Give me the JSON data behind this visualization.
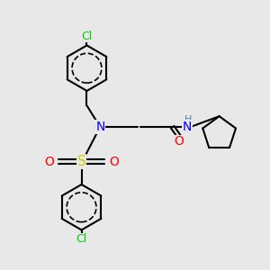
{
  "bg_color": "#e8e8e8",
  "bond_color": "#000000",
  "bond_width": 1.5,
  "colors": {
    "C": "#000000",
    "N": "#0000ff",
    "O": "#ff0000",
    "S": "#cccc00",
    "Cl": "#00cc00",
    "H": "#4488aa"
  }
}
